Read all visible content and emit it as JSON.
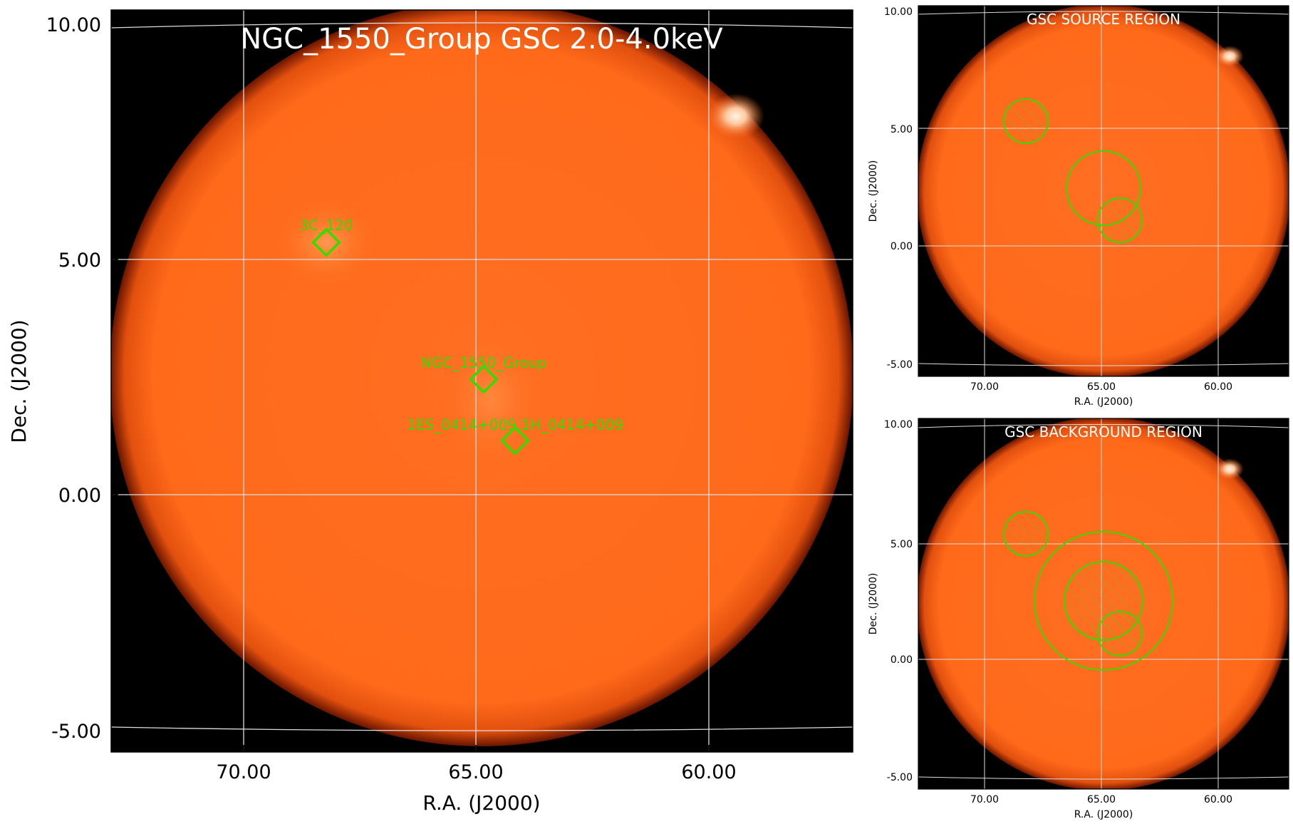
{
  "main_panel": {
    "title": "NGC_1550_Group GSC 2.0-4.0keV",
    "xlabel": "R.A. (J2000)",
    "ylabel": "Dec. (J2000)",
    "xticks": [
      "70.00",
      "65.00",
      "60.00"
    ],
    "yticks": [
      "10.00",
      "5.00",
      "0.00",
      "-5.00"
    ],
    "sources": [
      {
        "label": "3C_120",
        "ra": 68.3,
        "dec": 5.4
      },
      {
        "label": "NGC_1550_Group",
        "ra": 65.0,
        "dec": 2.45
      },
      {
        "label": "1ES_0414+009,1H_0414+009",
        "ra": 64.3,
        "dec": 1.15
      }
    ]
  },
  "source_panel": {
    "title": "GSC SOURCE REGION",
    "xlabel": "R.A. (J2000)",
    "ylabel": "Dec. (J2000)",
    "xticks": [
      "70.00",
      "65.00",
      "60.00"
    ],
    "yticks": [
      "10.00",
      "5.00",
      "0.00",
      "-5.00"
    ]
  },
  "background_panel": {
    "title": "GSC BACKGROUND REGION",
    "xlabel": "R.A. (J2000)",
    "ylabel": "Dec. (J2000)",
    "xticks": [
      "70.00",
      "65.00",
      "60.00"
    ],
    "yticks": [
      "10.00",
      "5.00",
      "0.00",
      "-5.00"
    ]
  },
  "colors": {
    "field": "#ff6a1a",
    "outside": "#000000",
    "region": "#33dd00",
    "grid": "#dddddd"
  }
}
